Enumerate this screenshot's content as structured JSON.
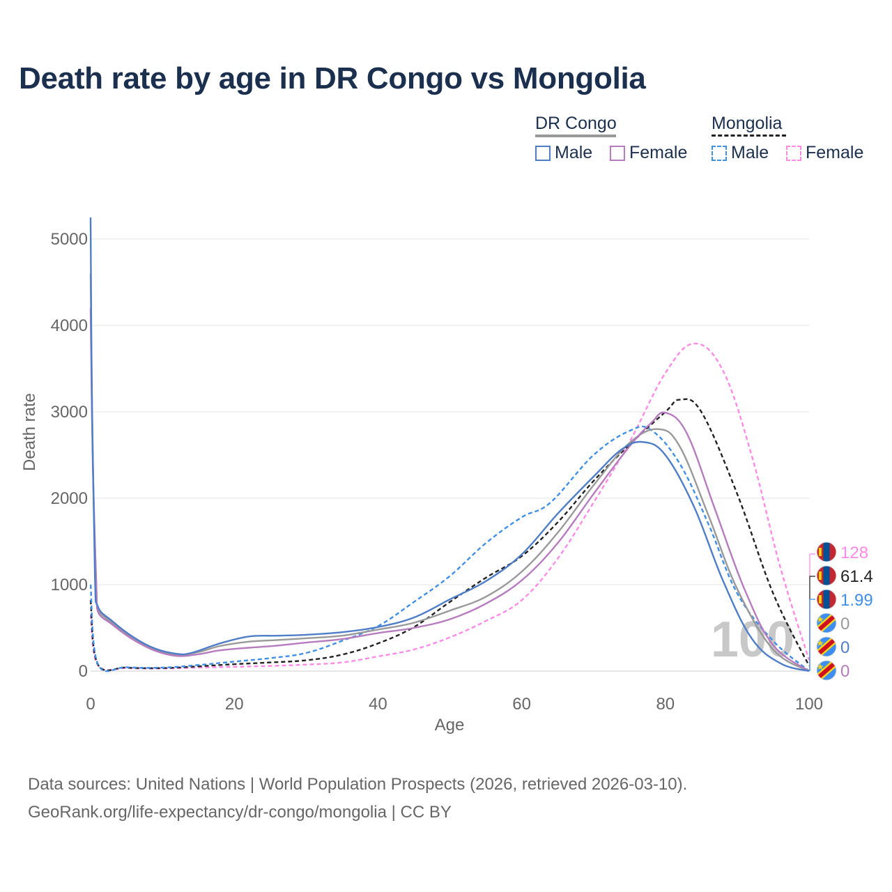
{
  "title": "Death rate by age in DR Congo vs Mongolia",
  "legend": {
    "groups": [
      {
        "name": "DR Congo",
        "line_color": "#999999",
        "line_style": "solid",
        "items": [
          {
            "label": "Male",
            "color": "#4f7ec8",
            "style": "solid"
          },
          {
            "label": "Female",
            "color": "#b77bbf",
            "style": "solid"
          }
        ]
      },
      {
        "name": "Mongolia",
        "line_color": "#222222",
        "line_style": "dashed",
        "items": [
          {
            "label": "Male",
            "color": "#3f8fe8",
            "style": "dashed"
          },
          {
            "label": "Female",
            "color": "#ff8ae8",
            "style": "dashed"
          }
        ]
      }
    ]
  },
  "source": {
    "line1": "Data sources: United Nations | World Population Prospects (2026, retrieved 2026-03-10).",
    "line2": "GeoRank.org/life-expectancy/dr-congo/mongolia | CC BY"
  },
  "chart_data": {
    "type": "line",
    "xlabel": "Age",
    "ylabel": "Death rate",
    "xlim": [
      0,
      100
    ],
    "ylim": [
      0,
      5250
    ],
    "xticks": [
      0,
      20,
      40,
      60,
      80,
      100
    ],
    "yticks": [
      0,
      1000,
      2000,
      3000,
      4000,
      5000
    ],
    "grid": true,
    "watermark": "100",
    "series": [
      {
        "name": "Mongolia Female",
        "color": "#ff8ae8",
        "dashed": true,
        "x": [
          0,
          1,
          5,
          10,
          15,
          20,
          25,
          30,
          35,
          40,
          45,
          50,
          55,
          60,
          65,
          70,
          75,
          80,
          84,
          88,
          92,
          96,
          100
        ],
        "y": [
          650,
          70,
          35,
          30,
          40,
          50,
          60,
          75,
          100,
          170,
          250,
          390,
          580,
          820,
          1300,
          1950,
          2650,
          3450,
          3790,
          3480,
          2500,
          1200,
          128
        ]
      },
      {
        "name": "Mongolia (both sexes)",
        "color": "#222222",
        "dashed": true,
        "x": [
          0,
          1,
          5,
          10,
          15,
          20,
          25,
          30,
          35,
          40,
          45,
          50,
          55,
          60,
          65,
          70,
          75,
          80,
          82,
          85,
          90,
          95,
          100
        ],
        "y": [
          820,
          80,
          40,
          35,
          55,
          80,
          100,
          125,
          190,
          320,
          510,
          800,
          1080,
          1330,
          1720,
          2200,
          2620,
          3000,
          3140,
          3000,
          2050,
          900,
          61.4
        ]
      },
      {
        "name": "Mongolia Male",
        "color": "#3f8fe8",
        "dashed": true,
        "x": [
          0,
          1,
          5,
          10,
          15,
          20,
          25,
          30,
          35,
          40,
          45,
          50,
          55,
          60,
          64,
          70,
          75,
          78,
          82,
          86,
          90,
          95,
          100
        ],
        "y": [
          1000,
          85,
          45,
          40,
          70,
          110,
          150,
          210,
          350,
          520,
          800,
          1100,
          1480,
          1780,
          1950,
          2500,
          2780,
          2790,
          2400,
          1700,
          900,
          350,
          1.99
        ]
      },
      {
        "name": "DR Congo (both sexes)",
        "color": "#999999",
        "dashed": false,
        "x": [
          0,
          0.3,
          0.8,
          1,
          3,
          6,
          9,
          12,
          15,
          18,
          22,
          26,
          30,
          35,
          40,
          45,
          50,
          55,
          60,
          65,
          70,
          75,
          79,
          82,
          86,
          90,
          95,
          100
        ],
        "y": [
          4600,
          2500,
          1000,
          720,
          560,
          380,
          250,
          190,
          220,
          290,
          340,
          360,
          380,
          410,
          480,
          560,
          700,
          860,
          1150,
          1600,
          2150,
          2640,
          2800,
          2600,
          1800,
          950,
          250,
          0
        ]
      },
      {
        "name": "DR Congo Female",
        "color": "#b77bbf",
        "dashed": false,
        "x": [
          0,
          0.3,
          0.8,
          1,
          3,
          6,
          9,
          12,
          15,
          18,
          22,
          26,
          30,
          35,
          40,
          45,
          50,
          55,
          60,
          65,
          70,
          75,
          78,
          80,
          83,
          87,
          91,
          95,
          100
        ],
        "y": [
          4200,
          2400,
          980,
          690,
          540,
          360,
          235,
          175,
          195,
          240,
          270,
          295,
          330,
          370,
          440,
          500,
          600,
          780,
          1050,
          1480,
          2050,
          2600,
          2870,
          2990,
          2750,
          1850,
          950,
          300,
          0
        ]
      },
      {
        "name": "DR Congo Male",
        "color": "#4f7ec8",
        "dashed": false,
        "x": [
          0,
          0.2,
          0.6,
          1,
          3,
          6,
          9,
          12,
          14,
          18,
          22,
          26,
          30,
          35,
          40,
          45,
          50,
          55,
          60,
          65,
          70,
          74,
          77,
          80,
          84,
          88,
          92,
          96,
          100
        ],
        "y": [
          5250,
          3000,
          1100,
          750,
          580,
          390,
          260,
          200,
          210,
          320,
          400,
          410,
          420,
          450,
          510,
          620,
          830,
          1040,
          1350,
          1820,
          2250,
          2570,
          2650,
          2500,
          1900,
          1050,
          380,
          90,
          0
        ]
      }
    ],
    "end_labels": [
      {
        "value": "128",
        "color": "#ff8ae8",
        "flag": "mongolia-flag"
      },
      {
        "value": "61.4",
        "color": "#222222",
        "flag": "mongolia-flag"
      },
      {
        "value": "1.99",
        "color": "#3f8fe8",
        "flag": "mongolia-flag"
      },
      {
        "value": "0",
        "color": "#999999",
        "flag": "dr-congo-flag"
      },
      {
        "value": "0",
        "color": "#4f7ec8",
        "flag": "dr-congo-flag"
      },
      {
        "value": "0",
        "color": "#b77bbf",
        "flag": "dr-congo-flag"
      }
    ]
  }
}
